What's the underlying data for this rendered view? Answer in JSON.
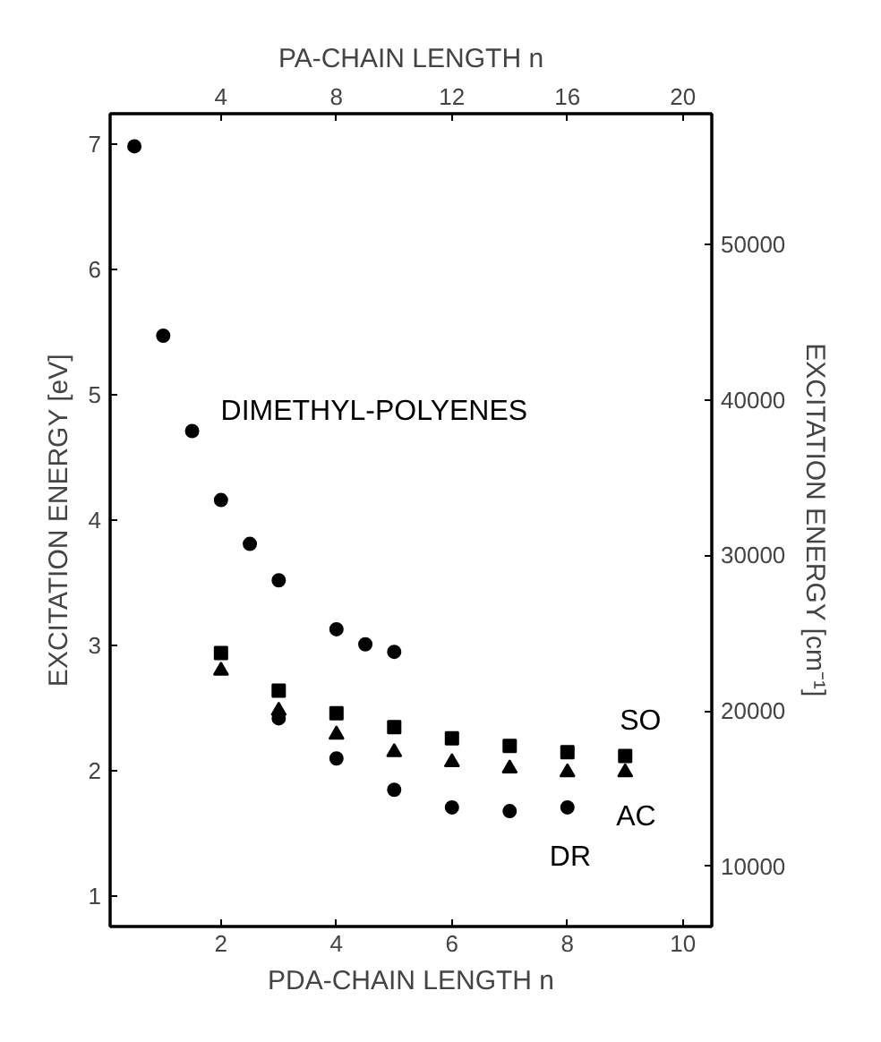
{
  "chart_data": {
    "type": "scatter",
    "xlabel": "PDA-CHAIN LENGTH n",
    "ylabel": "EXCITATION ENERGY [eV]",
    "y2label": "EXCITATION ENERGY [cm⁻¹]",
    "x2label": "PA-CHAIN LENGTH n",
    "xlim": [
      0.08,
      10.5
    ],
    "xticks": [
      2,
      4,
      6,
      8,
      10
    ],
    "x2lim": [
      0.16,
      21
    ],
    "x2ticks": [
      4,
      8,
      12,
      16,
      20
    ],
    "ylim": [
      0.76,
      7.24
    ],
    "yticks": [
      1,
      2,
      3,
      4,
      5,
      6,
      7
    ],
    "y2lim": [
      6130,
      58394
    ],
    "y2ticks": [
      10000,
      20000,
      30000,
      40000,
      50000
    ],
    "grid": false,
    "series": [
      {
        "name": "DIMETHYL-POLYENES",
        "color": "#000000",
        "marker": "circle",
        "x": [
          0.5,
          1,
          1.5,
          2,
          2.5,
          3,
          4,
          4.5,
          5
        ],
        "values": [
          6.98,
          5.47,
          4.71,
          4.16,
          3.81,
          3.52,
          3.13,
          3.01,
          2.95
        ]
      },
      {
        "name": "SO",
        "color": "#000000",
        "marker": "square",
        "x": [
          2,
          3,
          4,
          5,
          6,
          7,
          8,
          9
        ],
        "values": [
          2.94,
          2.64,
          2.46,
          2.35,
          2.26,
          2.2,
          2.15,
          2.12
        ]
      },
      {
        "name": "AC",
        "color": "#000000",
        "marker": "triangle",
        "x": [
          2,
          3,
          4,
          5,
          6,
          7,
          8,
          9
        ],
        "values": [
          2.8,
          2.48,
          2.29,
          2.15,
          2.07,
          2.02,
          1.99,
          1.99
        ]
      },
      {
        "name": "DR",
        "color": "#000000",
        "marker": "circle",
        "x": [
          3,
          4,
          5,
          6,
          7,
          8
        ],
        "values": [
          2.42,
          2.1,
          1.85,
          1.71,
          1.68,
          1.71
        ]
      }
    ]
  }
}
